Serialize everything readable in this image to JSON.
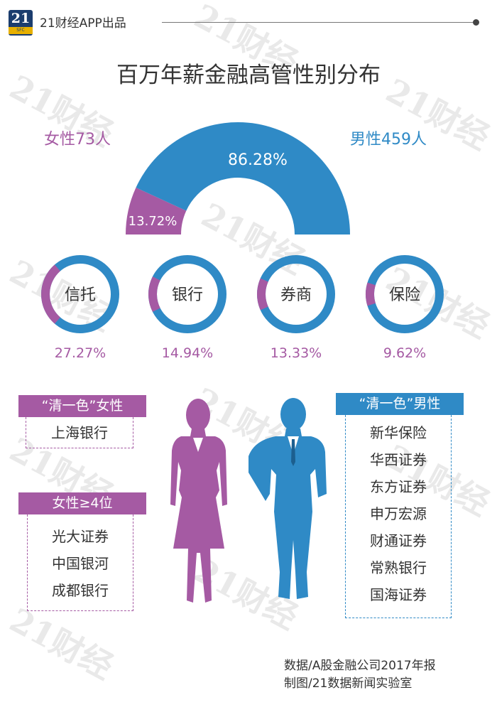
{
  "brand": {
    "logo_number": "21",
    "logo_sub": "SFC",
    "text": "21财经APP出品"
  },
  "watermark_text": "21财经",
  "title": "百万年薪金融高管性别分布",
  "chart_data": [
    {
      "type": "pie",
      "title": "百万年薪金融高管性别分布",
      "style": "half-donut",
      "categories": [
        "女性",
        "男性"
      ],
      "counts": [
        73,
        459
      ],
      "values": [
        13.72,
        86.28
      ],
      "value_labels": [
        "13.72%",
        "86.28%"
      ],
      "legend_labels": [
        "女性73人",
        "男性459人"
      ],
      "colors": [
        "#a55aa3",
        "#2f8ac6"
      ]
    },
    {
      "type": "pie",
      "style": "donut-small-multiples",
      "categories": [
        "信托",
        "银行",
        "券商",
        "保险"
      ],
      "female_share": [
        27.27,
        14.94,
        13.33,
        9.62
      ],
      "value_labels": [
        "27.27%",
        "14.94%",
        "13.33%",
        "9.62%"
      ],
      "colors": {
        "female": "#a55aa3",
        "male": "#2f8ac6"
      }
    }
  ],
  "panels": {
    "all_female": {
      "title": "“清一色”女性",
      "items": [
        "上海银行"
      ]
    },
    "female_ge4": {
      "title": "女性≥4位",
      "items": [
        "光大证券",
        "中国银河",
        "成都银行"
      ]
    },
    "all_male": {
      "title": "“清一色”男性",
      "items": [
        "新华保险",
        "华西证券",
        "东方证券",
        "申万宏源",
        "财通证券",
        "常熟银行",
        "国海证券"
      ]
    }
  },
  "source": {
    "line1": "数据/A股金融公司2017年报",
    "line2": "制图/21数据新闻实验室"
  },
  "colors": {
    "female": "#a55aa3",
    "male": "#2f8ac6",
    "text": "#333333"
  }
}
